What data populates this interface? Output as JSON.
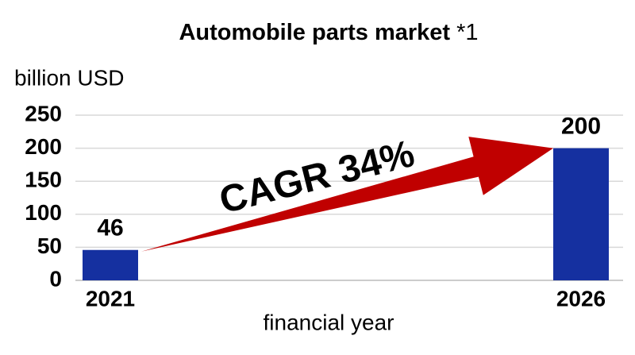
{
  "chart_data": {
    "type": "bar",
    "title": "Automobile parts market",
    "title_note": "*1",
    "y_label": "billion USD",
    "x_label": "financial year",
    "categories": [
      "2021",
      "2026"
    ],
    "values": [
      46,
      200
    ],
    "color": "#1530a0",
    "value_label_colors": [
      "#808080",
      "#1530a0"
    ],
    "annotation": "CAGR 34%",
    "annotation_color": "#c00000",
    "ylim": [
      0,
      250
    ],
    "yticks": [
      0,
      50,
      100,
      150,
      200,
      250
    ],
    "grid": true
  }
}
